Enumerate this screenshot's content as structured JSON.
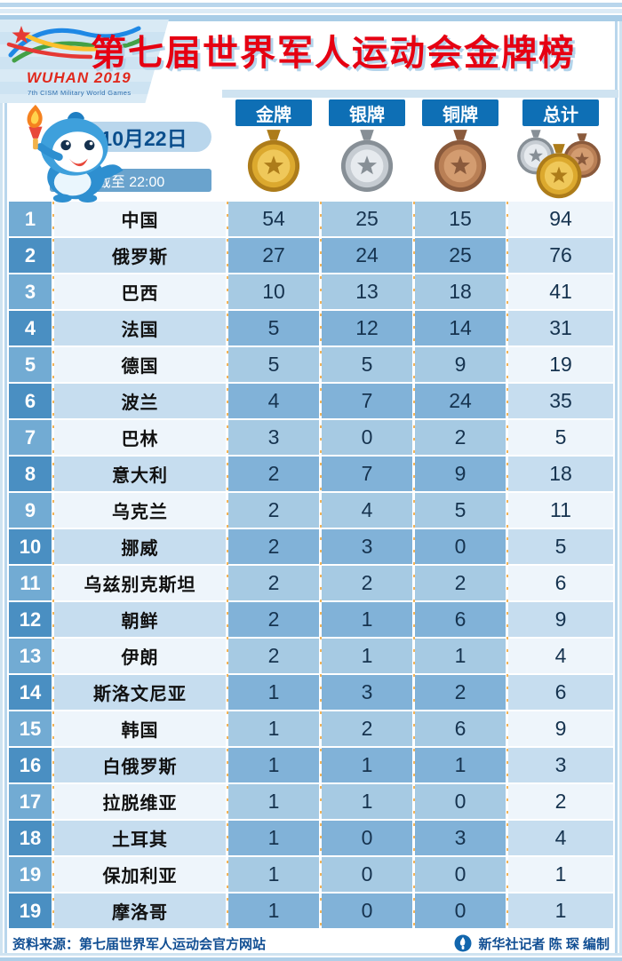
{
  "header": {
    "title": "第七届世界军人运动会金牌榜",
    "logo_line1": "WUHAN 2019",
    "logo_line2": "7th CISM Military World Games"
  },
  "columns": {
    "gold": "金牌",
    "silver": "银牌",
    "bronze": "铜牌",
    "total": "总计"
  },
  "date": {
    "day": "10月22日",
    "cutoff": "截至 22:00"
  },
  "chart_data": {
    "type": "table",
    "title": "第七届世界军人运动会金牌榜",
    "columns": [
      "金牌",
      "银牌",
      "铜牌",
      "总计"
    ],
    "rows": [
      {
        "rank": "1",
        "country": "中国",
        "gold": 54,
        "silver": 25,
        "bronze": 15,
        "total": 94
      },
      {
        "rank": "2",
        "country": "俄罗斯",
        "gold": 27,
        "silver": 24,
        "bronze": 25,
        "total": 76
      },
      {
        "rank": "3",
        "country": "巴西",
        "gold": 10,
        "silver": 13,
        "bronze": 18,
        "total": 41
      },
      {
        "rank": "4",
        "country": "法国",
        "gold": 5,
        "silver": 12,
        "bronze": 14,
        "total": 31
      },
      {
        "rank": "5",
        "country": "德国",
        "gold": 5,
        "silver": 5,
        "bronze": 9,
        "total": 19
      },
      {
        "rank": "6",
        "country": "波兰",
        "gold": 4,
        "silver": 7,
        "bronze": 24,
        "total": 35
      },
      {
        "rank": "7",
        "country": "巴林",
        "gold": 3,
        "silver": 0,
        "bronze": 2,
        "total": 5
      },
      {
        "rank": "8",
        "country": "意大利",
        "gold": 2,
        "silver": 7,
        "bronze": 9,
        "total": 18
      },
      {
        "rank": "9",
        "country": "乌克兰",
        "gold": 2,
        "silver": 4,
        "bronze": 5,
        "total": 11
      },
      {
        "rank": "10",
        "country": "挪威",
        "gold": 2,
        "silver": 3,
        "bronze": 0,
        "total": 5
      },
      {
        "rank": "11",
        "country": "乌兹别克斯坦",
        "gold": 2,
        "silver": 2,
        "bronze": 2,
        "total": 6
      },
      {
        "rank": "12",
        "country": "朝鲜",
        "gold": 2,
        "silver": 1,
        "bronze": 6,
        "total": 9
      },
      {
        "rank": "13",
        "country": "伊朗",
        "gold": 2,
        "silver": 1,
        "bronze": 1,
        "total": 4
      },
      {
        "rank": "14",
        "country": "斯洛文尼亚",
        "gold": 1,
        "silver": 3,
        "bronze": 2,
        "total": 6
      },
      {
        "rank": "15",
        "country": "韩国",
        "gold": 1,
        "silver": 2,
        "bronze": 6,
        "total": 9
      },
      {
        "rank": "16",
        "country": "白俄罗斯",
        "gold": 1,
        "silver": 1,
        "bronze": 1,
        "total": 3
      },
      {
        "rank": "17",
        "country": "拉脱维亚",
        "gold": 1,
        "silver": 1,
        "bronze": 0,
        "total": 2
      },
      {
        "rank": "18",
        "country": "土耳其",
        "gold": 1,
        "silver": 0,
        "bronze": 3,
        "total": 4
      },
      {
        "rank": "19",
        "country": "保加利亚",
        "gold": 1,
        "silver": 0,
        "bronze": 0,
        "total": 1
      },
      {
        "rank": "19",
        "country": "摩洛哥",
        "gold": 1,
        "silver": 0,
        "bronze": 0,
        "total": 1
      }
    ]
  },
  "footer": {
    "source": "资料来源：第七届世界军人运动会官方网站",
    "credit": "新华社记者 陈 琛 编制"
  },
  "colors": {
    "title_red": "#e60012",
    "header_blue": "#0e6fb5",
    "row_rank_light": "#72abd3",
    "row_rank_dark": "#4a8fc2",
    "row_mid_light": "#a6cae3",
    "row_mid_dark": "#81b2d8",
    "medals": {
      "gold": {
        "rim": "#ad7c1a",
        "mid": "#dca92e",
        "face": "#efc85a"
      },
      "silver": {
        "rim": "#878f96",
        "mid": "#c6ccd2",
        "face": "#e6eaee"
      },
      "bronze": {
        "rim": "#8a5a3c",
        "mid": "#b97f55",
        "face": "#d39c70"
      }
    }
  }
}
